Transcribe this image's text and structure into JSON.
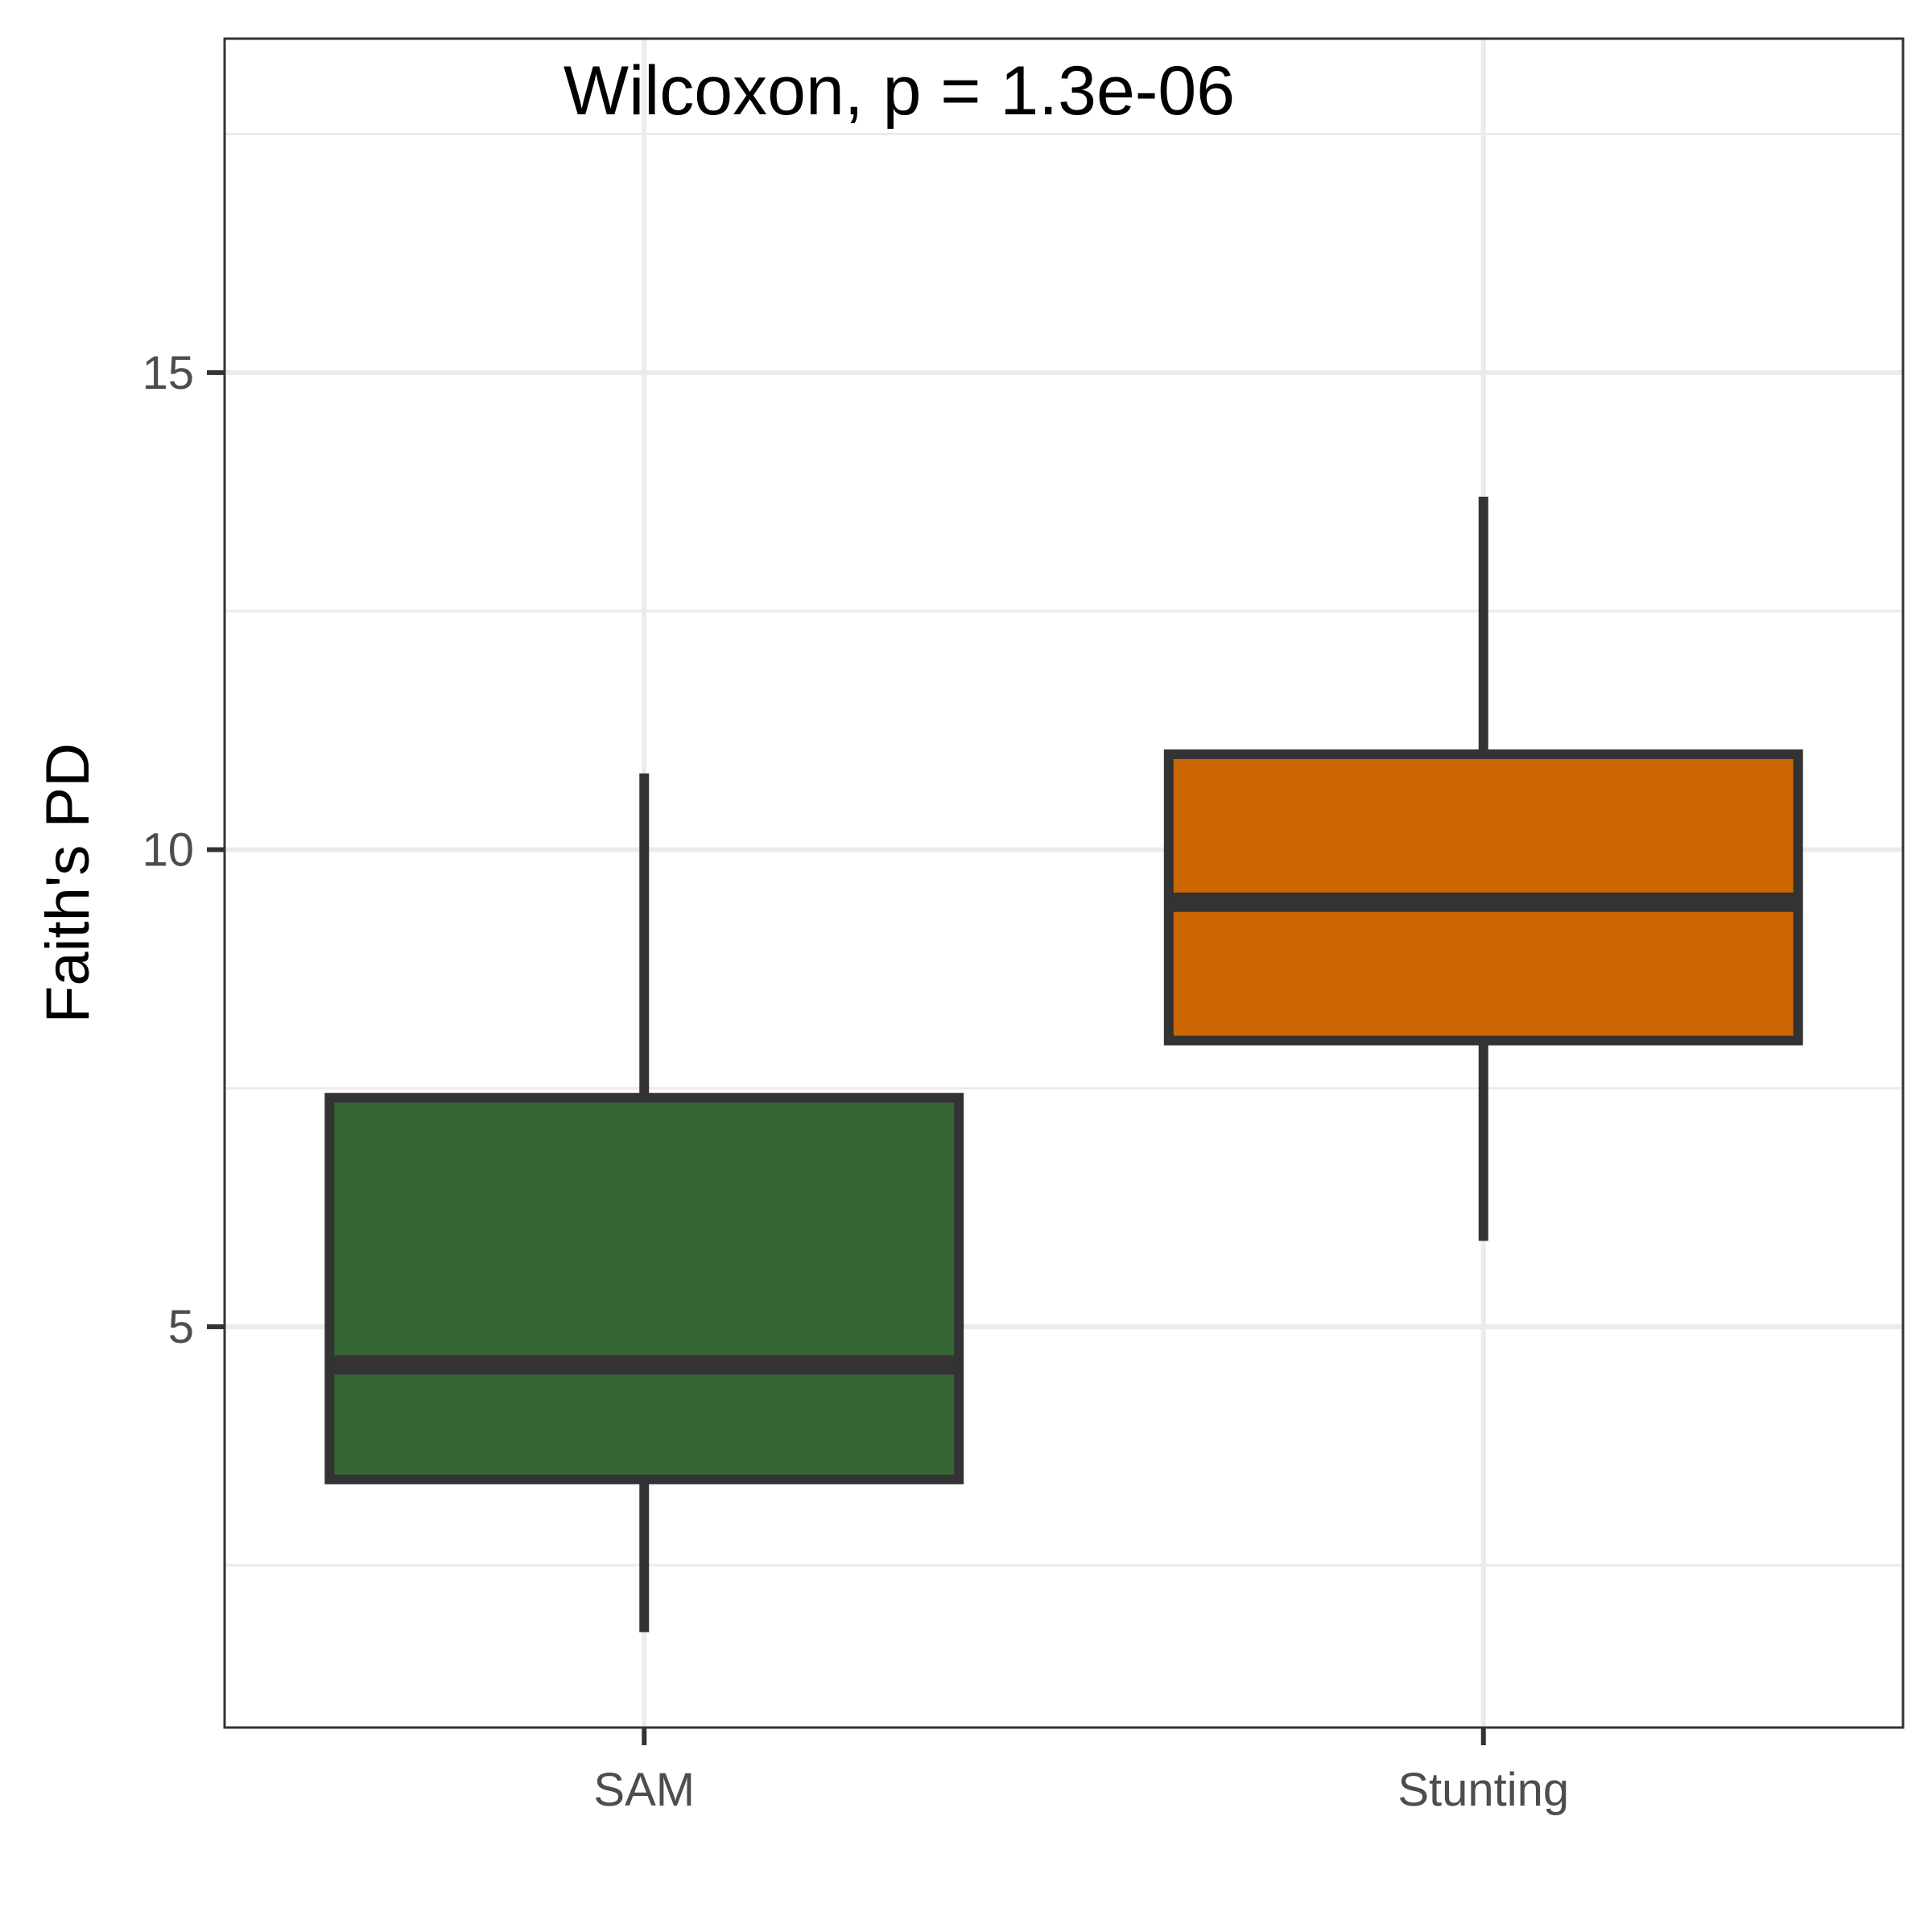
{
  "chart_data": {
    "type": "boxplot",
    "title": "",
    "xlabel": "",
    "ylabel": "Faith's PD",
    "ylim": [
      0.8,
      18.5
    ],
    "yticks_major": [
      5,
      10,
      15
    ],
    "yticks_minor": [
      2.5,
      7.5,
      12.5,
      17.5
    ],
    "grid": true,
    "annotation": "Wilcoxon, p = 1.3e-06",
    "categories": [
      "SAM",
      "Stunting"
    ],
    "boxes": [
      {
        "category": "SAM",
        "whisker_low": 1.8,
        "q1": 3.4,
        "median": 4.6,
        "q3": 7.4,
        "whisker_high": 10.8,
        "color": "#336633"
      },
      {
        "category": "Stunting",
        "whisker_low": 5.9,
        "q1": 8.0,
        "median": 9.45,
        "q3": 11.0,
        "whisker_high": 13.7,
        "color": "#CC6600"
      }
    ],
    "outline_color": "#333333"
  }
}
